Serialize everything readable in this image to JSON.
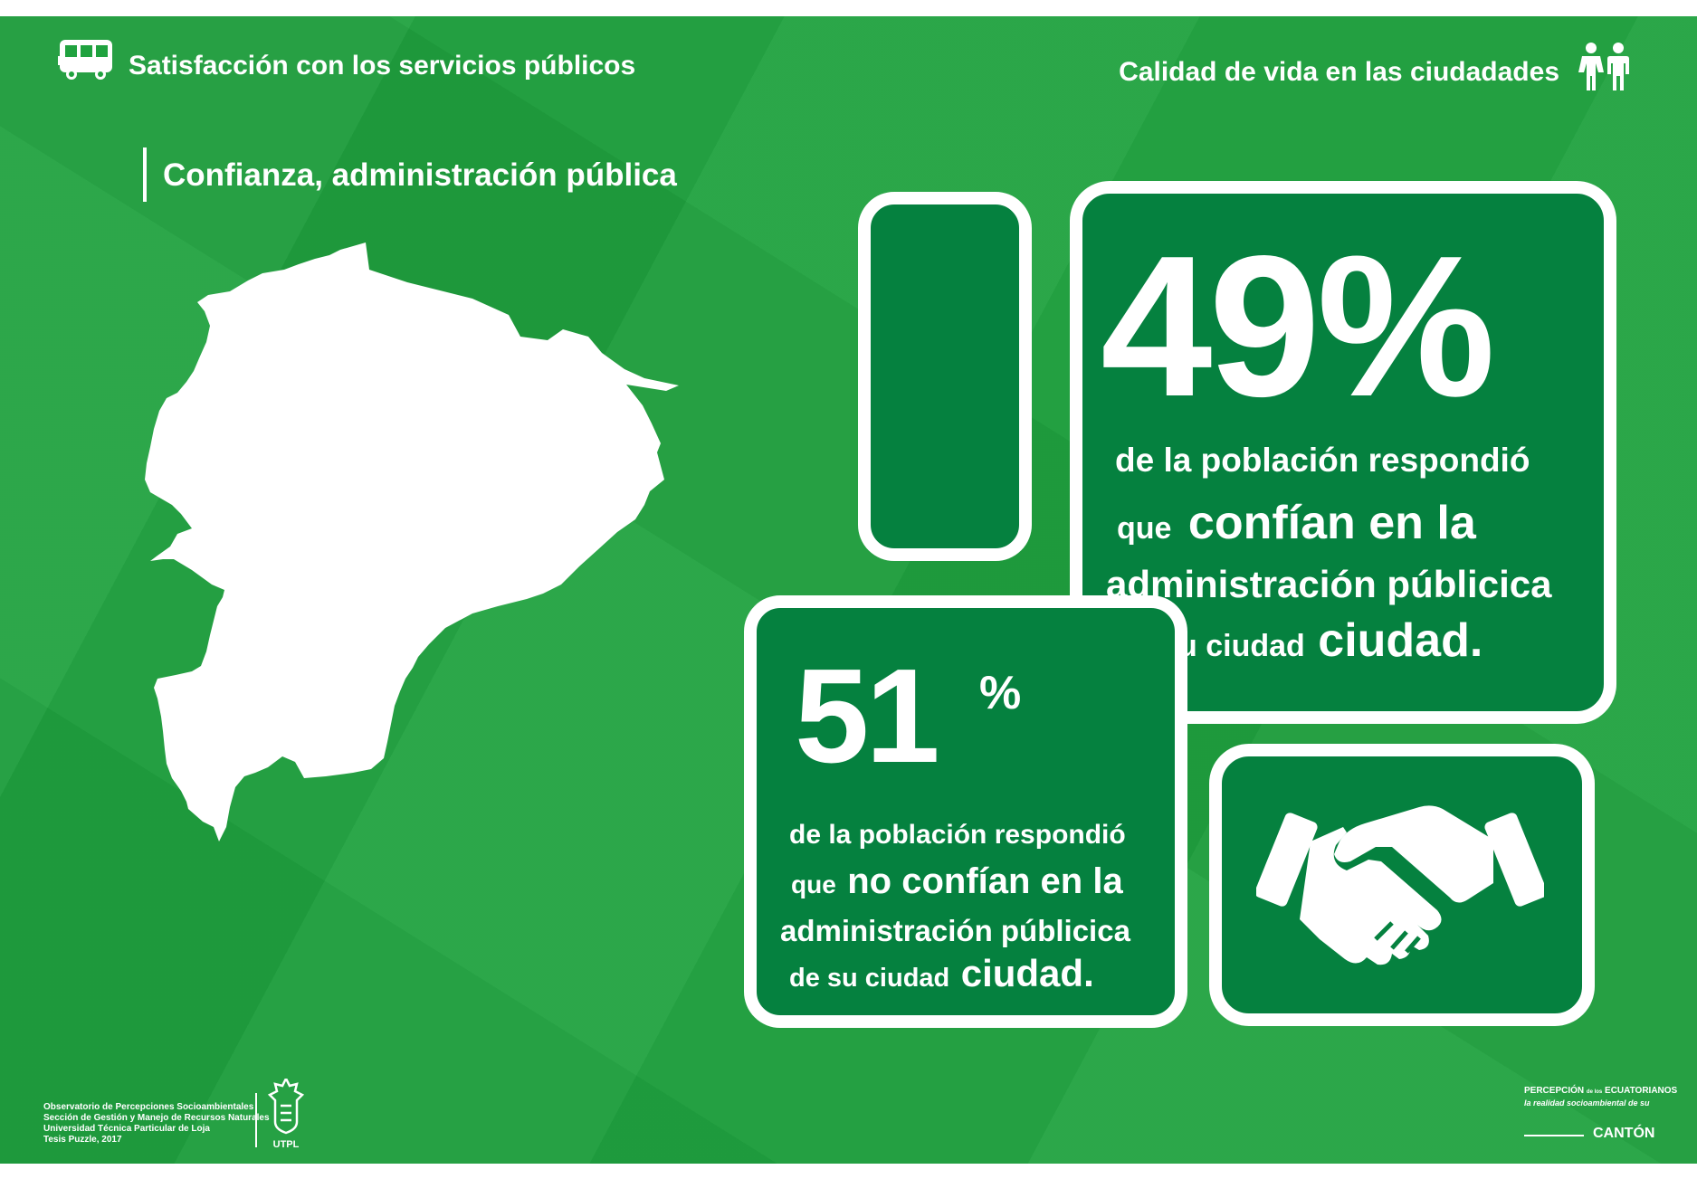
{
  "header": {
    "left_title": "Satisfacción con los servicios públicos",
    "left_icon": "bus-icon",
    "right_title": "Calidad de vida en las ciudadades",
    "right_icon": "people-icon"
  },
  "section_title": "Confianza, administración pública",
  "map_icon": "ecuador-map-icon",
  "stat_trust": {
    "value": "49%",
    "line1": "de la población respondió",
    "line2_small": "que",
    "line2_big": "confían en la",
    "line3": "administración públicica",
    "line4_small": "de su ciudad",
    "line4_big": "ciudad."
  },
  "stat_distrust": {
    "number": "51",
    "percent": "%",
    "line1": "de la población respondió",
    "line2_small": "que",
    "line2_big": "no confían en la",
    "line3": "administración públicica",
    "line4_small": "de su ciudad",
    "line4_big": "ciudad."
  },
  "handshake_icon": "handshake-icon",
  "footer": {
    "credits": [
      "Observatorio de Percepciones Socioambientales",
      "Sección de Gestión y Manejo de Recursos Naturales",
      "Universidad Técnica Particular de Loja",
      "Tesis Puzzle, 2017"
    ],
    "utpl_label": "UTPL",
    "brand_line1": "PERCEPCIÓN",
    "brand_mid": "de los",
    "brand_line1b": "ECUATORIANOS",
    "brand_line2": "la realidad socioambiental de su",
    "brand_line3": "CANTÓN"
  },
  "colors": {
    "background": "#20a23f",
    "box_fill": "#05813f",
    "foreground": "#ffffff"
  }
}
